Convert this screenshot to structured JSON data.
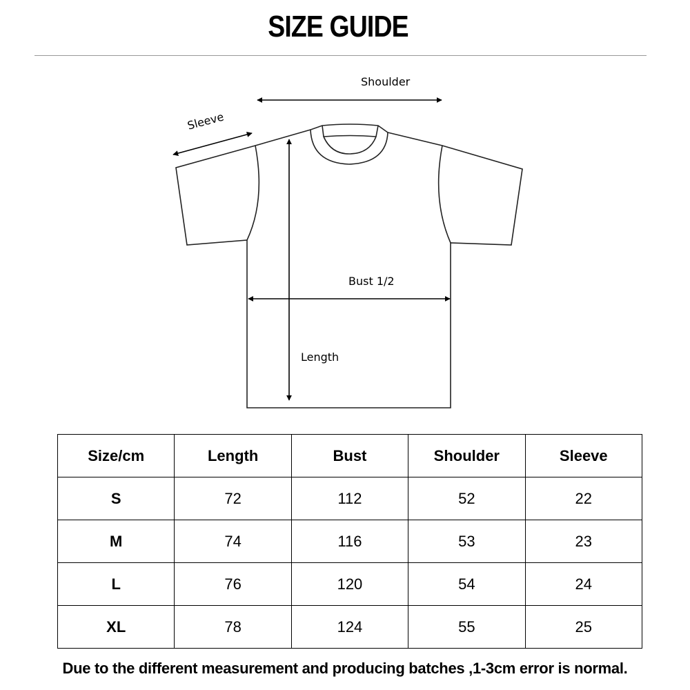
{
  "title": "SIZE GUIDE",
  "diagram": {
    "shoulder": "Shoulder",
    "sleeve": "Sleeve",
    "bust": "Bust 1/2",
    "length": "Length"
  },
  "table": {
    "headers": [
      "Size/cm",
      "Length",
      "Bust",
      "Shoulder",
      "Sleeve"
    ],
    "rows": [
      [
        "S",
        "72",
        "112",
        "52",
        "22"
      ],
      [
        "M",
        "74",
        "116",
        "53",
        "23"
      ],
      [
        "L",
        "76",
        "120",
        "54",
        "24"
      ],
      [
        "XL",
        "78",
        "124",
        "55",
        "25"
      ]
    ]
  },
  "note": "Due to the different measurement and producing batches ,1-3cm error is  normal."
}
